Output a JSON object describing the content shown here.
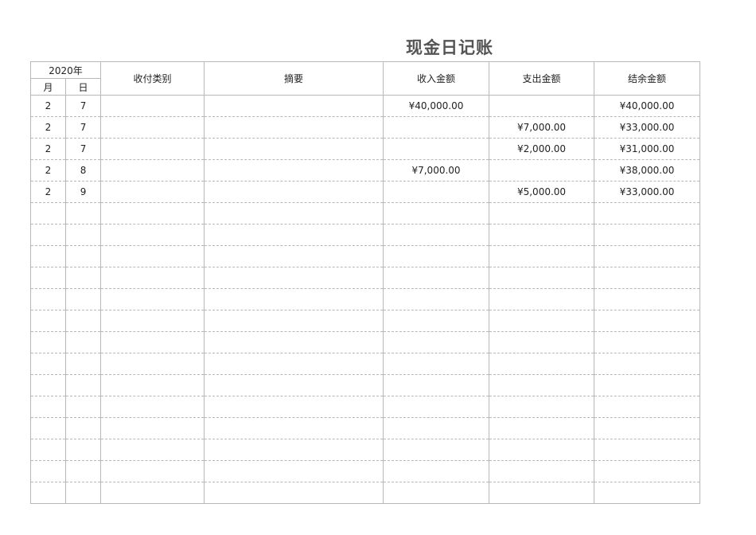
{
  "title": "现金日记账",
  "colors": {
    "income": "#1aa55a",
    "expense": "#e60012"
  },
  "header": {
    "year": "2020年",
    "month": "月",
    "day": "日",
    "category": "收付类别",
    "summary": "摘要",
    "income": "收入金额",
    "expense": "支出金额",
    "balance": "结余金额"
  },
  "rows": [
    {
      "month": "2",
      "day": "7",
      "category": "",
      "summary": "",
      "income": "¥40,000.00",
      "expense": "",
      "balance": "¥40,000.00",
      "type": "in"
    },
    {
      "month": "2",
      "day": "7",
      "category": "",
      "summary": "",
      "income": "",
      "expense": "¥7,000.00",
      "balance": "¥33,000.00",
      "type": "out"
    },
    {
      "month": "2",
      "day": "7",
      "category": "",
      "summary": "",
      "income": "",
      "expense": "¥2,000.00",
      "balance": "¥31,000.00",
      "type": "out"
    },
    {
      "month": "2",
      "day": "8",
      "category": "",
      "summary": "",
      "income": "¥7,000.00",
      "expense": "",
      "balance": "¥38,000.00",
      "type": "in"
    },
    {
      "month": "2",
      "day": "9",
      "category": "",
      "summary": "",
      "income": "",
      "expense": "¥5,000.00",
      "balance": "¥33,000.00",
      "type": "out"
    }
  ],
  "empty_rows": 14
}
